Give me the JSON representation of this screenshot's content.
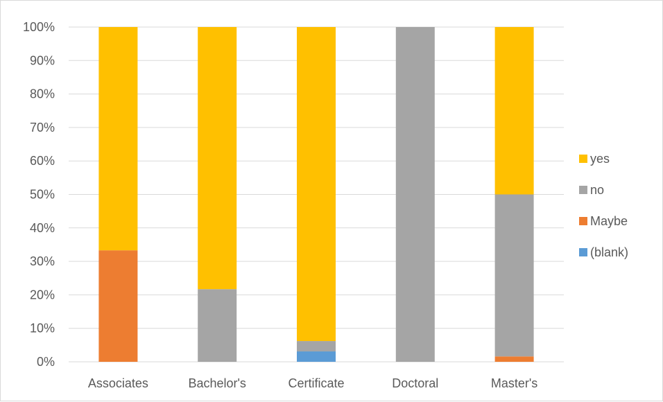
{
  "chart_data": {
    "type": "bar",
    "stacked": true,
    "percent_stacked": true,
    "title": "",
    "xlabel": "",
    "ylabel": "",
    "ylim": [
      0,
      100
    ],
    "y_ticks": [
      "0%",
      "10%",
      "20%",
      "30%",
      "40%",
      "50%",
      "60%",
      "70%",
      "80%",
      "90%",
      "100%"
    ],
    "categories": [
      "Associates",
      "Bachelor's",
      "Certificate",
      "Doctoral",
      "Master's"
    ],
    "series": [
      {
        "name": "(blank)",
        "color": "#5b9bd5",
        "values": [
          0,
          0,
          3.1,
          0,
          0
        ]
      },
      {
        "name": "Maybe",
        "color": "#ed7d31",
        "values": [
          33.3,
          0,
          0,
          0,
          1.6
        ]
      },
      {
        "name": "no",
        "color": "#a5a5a5",
        "values": [
          0,
          21.7,
          3.1,
          100,
          48.4
        ]
      },
      {
        "name": "yes",
        "color": "#ffc000",
        "values": [
          66.7,
          78.3,
          93.8,
          0,
          50
        ]
      }
    ],
    "legend": {
      "placement": "right",
      "order": [
        "yes",
        "no",
        "Maybe",
        "(blank)"
      ]
    },
    "grid": true,
    "gridline_color": "#d9d9d9"
  }
}
